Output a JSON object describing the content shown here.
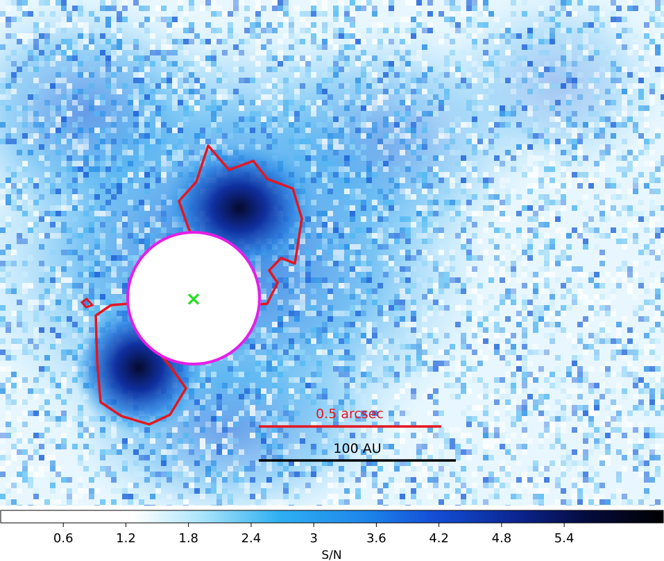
{
  "image": {
    "description_colors": {
      "background": "#ffffff",
      "low": "#d6f3ff",
      "mid": "#3ab0f0",
      "high": "#1c4fc8",
      "peak": "#000000"
    }
  },
  "overlays": {
    "contour_color": "#e3171f",
    "mask_color": "#e61ee6",
    "star_marker_color": "#22dd22",
    "star_marker": "×"
  },
  "scalebars": {
    "arcsec_label": "0.5 arcsec",
    "arcsec_color": "#e3171f",
    "au_label": "100 AU",
    "au_color": "#000000"
  },
  "colorbar": {
    "ticks": [
      "0.6",
      "1.2",
      "1.8",
      "2.4",
      "3",
      "3.6",
      "4.2",
      "4.8",
      "5.4"
    ],
    "label": "S/N",
    "range": [
      0,
      6.35
    ]
  }
}
